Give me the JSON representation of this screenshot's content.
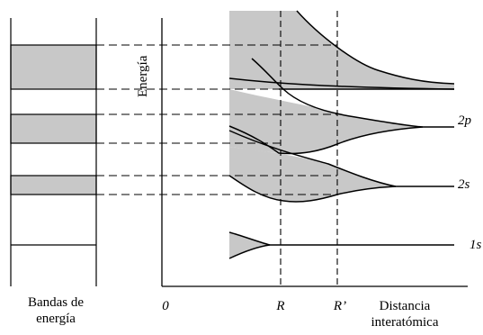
{
  "labels": {
    "energy_axis": "Energía",
    "bands_line1": "Bandas de",
    "bands_line2": "energía",
    "origin": "0",
    "r": "R",
    "r_prime": "R’",
    "distance_line1": "Distancia",
    "distance_line2": "interatómica",
    "level_2p": "2p",
    "level_2s": "2s",
    "level_1s": "1s"
  },
  "colors": {
    "band_fill": "#c8c8c8",
    "line": "#000000"
  }
}
